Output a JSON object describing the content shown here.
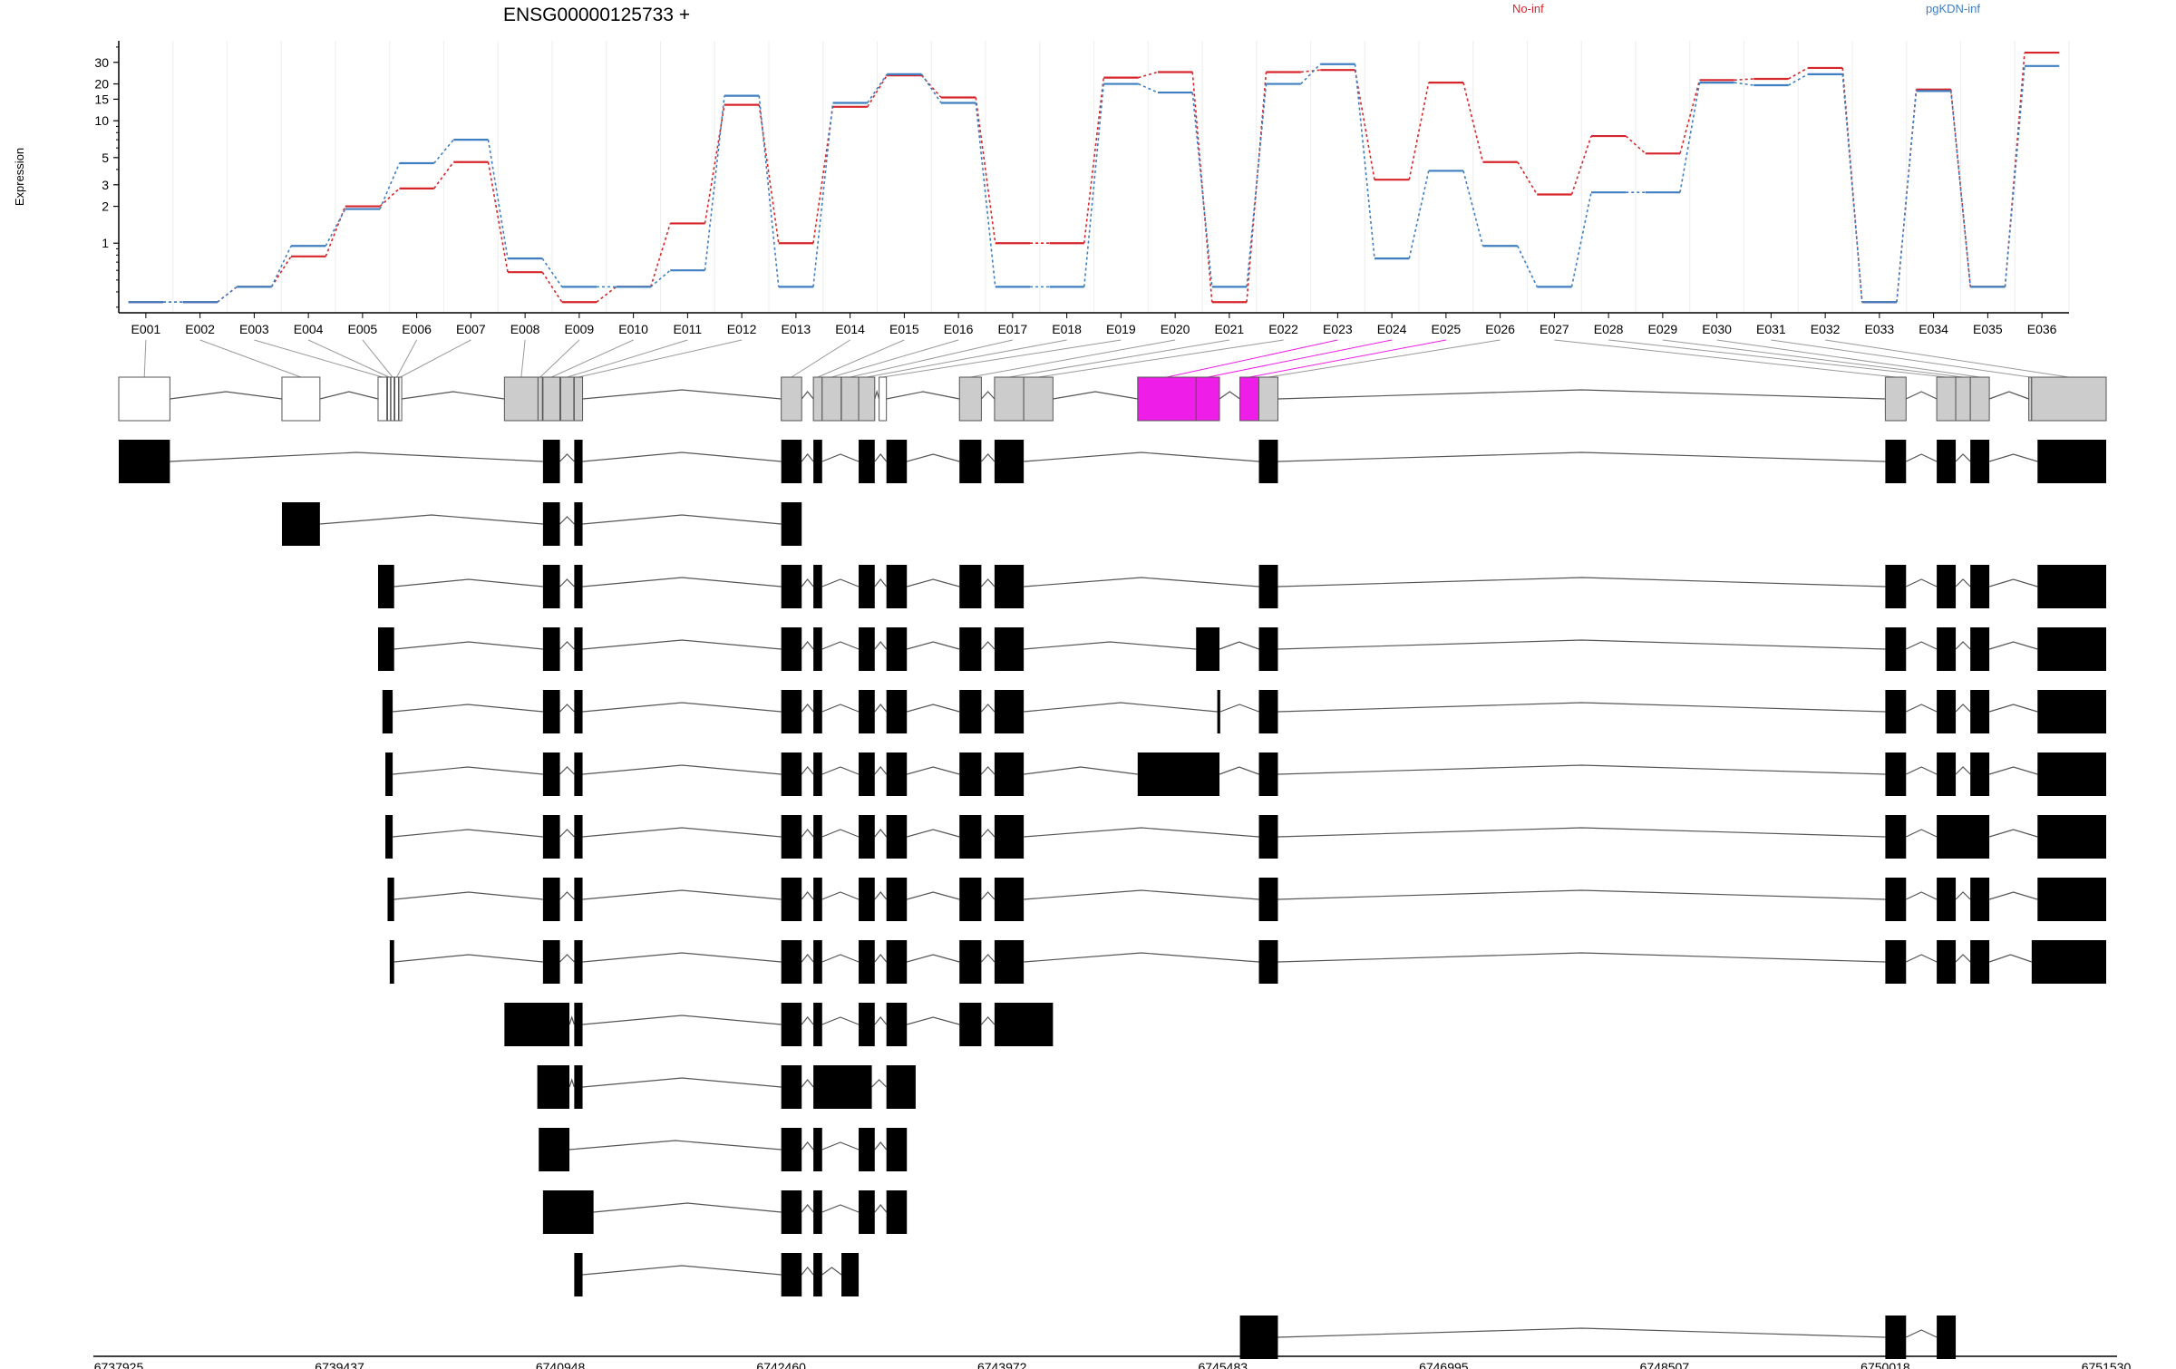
{
  "chart_data": {
    "type": "line",
    "title": "ENSG00000125733 +",
    "ylabel": "Expression",
    "y_scale": "log",
    "y_ticks": [
      1,
      2,
      3,
      5,
      10,
      15,
      20,
      30
    ],
    "ylim": [
      0.27,
      45
    ],
    "x_tick_labels": [
      "6737925",
      "6739437",
      "6740948",
      "6742460",
      "6743972",
      "6745483",
      "6746995",
      "6748507",
      "6750018",
      "6751530"
    ],
    "categories": [
      "E001",
      "E002",
      "E003",
      "E004",
      "E005",
      "E006",
      "E007",
      "E008",
      "E009",
      "E010",
      "E011",
      "E012",
      "E013",
      "E014",
      "E015",
      "E016",
      "E017",
      "E018",
      "E019",
      "E020",
      "E021",
      "E022",
      "E023",
      "E024",
      "E025",
      "E026",
      "E027",
      "E028",
      "E029",
      "E030",
      "E031",
      "E032",
      "E033",
      "E034",
      "E035",
      "E036"
    ],
    "highlighted_bins": [
      "E022",
      "E023",
      "E024",
      "E025",
      "E026",
      "E027",
      "E028"
    ],
    "colors": {
      "No-inf": "#d7262b",
      "pgKDN-inf": "#3f7fc1",
      "highlight": "#ee1de8",
      "exon_gray": "#cccccc"
    },
    "series": [
      {
        "name": "No-inf",
        "color": "#d7262b",
        "values": [
          0.33,
          0.33,
          0.44,
          0.78,
          2.0,
          2.8,
          4.6,
          0.58,
          0.33,
          0.44,
          1.45,
          13.5,
          1.0,
          13.0,
          23.5,
          15.5,
          1.0,
          1.0,
          22.5,
          25.0,
          0.33,
          25.0,
          26.0,
          3.3,
          20.5,
          4.6,
          2.5,
          7.5,
          5.4,
          21.5,
          22.0,
          27.0,
          0.33,
          18.0,
          0.44,
          36.0
        ]
      },
      {
        "name": "pgKDN-inf",
        "color": "#3f7fc1",
        "values": [
          0.33,
          0.33,
          0.44,
          0.95,
          1.9,
          4.5,
          7.0,
          0.75,
          0.44,
          0.44,
          0.6,
          16.0,
          0.44,
          14.0,
          24.0,
          14.0,
          0.44,
          0.44,
          20.0,
          17.0,
          0.44,
          20.0,
          29.0,
          0.75,
          3.9,
          0.95,
          0.44,
          2.6,
          2.6,
          20.5,
          19.5,
          24.0,
          0.33,
          17.5,
          0.44,
          28.0
        ]
      }
    ],
    "legend": [
      "No-inf",
      "pgKDN-inf"
    ]
  }
}
